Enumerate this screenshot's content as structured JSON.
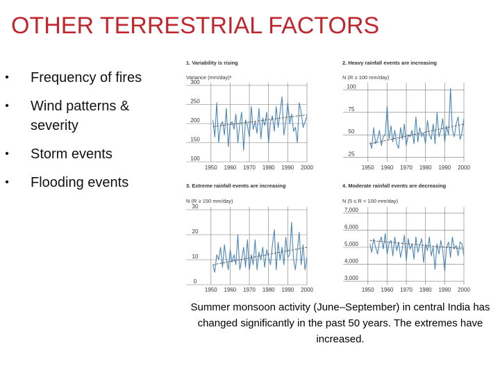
{
  "slide": {
    "title": "OTHER TERRESTRIAL FACTORS",
    "bullets": [
      "Frequency of fires",
      "Wind patterns & severity",
      "Storm events",
      "Flooding events"
    ],
    "bullet_glyph": "•",
    "caption": "Summer monsoon activity (June–September) in central India has changed significantly in the past 50 years. The extremes have increased."
  },
  "colors": {
    "title": "#c0262d",
    "series": "#4a86b8",
    "trend": "#555555",
    "grid": "#777777"
  },
  "chart_data": [
    {
      "type": "line",
      "title": "1. Variability is rising",
      "ylabel": "Variance (mm/day)²",
      "xlim": [
        1945,
        2000
      ],
      "ylim": [
        100,
        300
      ],
      "xticks": [
        1950,
        1960,
        1970,
        1980,
        1990,
        2000
      ],
      "yticks": [
        100,
        150,
        200,
        250,
        300
      ],
      "yticklabels": [
        "100",
        "150",
        "200",
        "250",
        "300"
      ],
      "grid": true,
      "x_start": 1951,
      "values": [
        210,
        165,
        255,
        150,
        195,
        205,
        170,
        240,
        140,
        200,
        205,
        185,
        225,
        150,
        200,
        230,
        130,
        210,
        195,
        165,
        245,
        185,
        205,
        175,
        240,
        160,
        215,
        195,
        230,
        150,
        205,
        220,
        180,
        245,
        190,
        230,
        270,
        170,
        205,
        255,
        200,
        225,
        180,
        190,
        150,
        255,
        230,
        190,
        205,
        220
      ],
      "trend": [
        [
          1951,
          192
        ],
        [
          2000,
          223
        ]
      ]
    },
    {
      "type": "line",
      "title": "2. Heavy rainfall events are increasing",
      "ylabel": "N (R ≥ 100 mm/day)",
      "xlim": [
        1945,
        2000
      ],
      "ylim": [
        20,
        105
      ],
      "xticks": [
        1950,
        1960,
        1970,
        1980,
        1990,
        2000
      ],
      "yticks": [
        25,
        50,
        75,
        100
      ],
      "yticklabels": [
        "25",
        "50",
        "75",
        "100"
      ],
      "grid": true,
      "x_start": 1951,
      "values": [
        42,
        35,
        58,
        40,
        45,
        55,
        38,
        48,
        50,
        82,
        45,
        60,
        42,
        55,
        40,
        35,
        58,
        45,
        62,
        38,
        50,
        48,
        55,
        40,
        70,
        42,
        58,
        48,
        52,
        40,
        66,
        50,
        45,
        62,
        40,
        75,
        48,
        55,
        68,
        42,
        60,
        50,
        102,
        55,
        48,
        62,
        70,
        45,
        52,
        68
      ],
      "trend": [
        [
          1951,
          40
        ],
        [
          2000,
          62
        ]
      ]
    },
    {
      "type": "line",
      "title": "3. Extreme rainfall events are increasing",
      "ylabel": "N (R ≥ 150 mm/day)",
      "xlim": [
        1945,
        2000
      ],
      "ylim": [
        0,
        30
      ],
      "xticks": [
        1950,
        1960,
        1970,
        1980,
        1990,
        2000
      ],
      "yticks": [
        0,
        10,
        20,
        30
      ],
      "yticklabels": [
        "0",
        "10",
        "20",
        "30"
      ],
      "grid": true,
      "x_start": 1951,
      "values": [
        8,
        5,
        12,
        10,
        15,
        7,
        16,
        10,
        6,
        14,
        9,
        12,
        8,
        20,
        6,
        10,
        15,
        7,
        18,
        6,
        12,
        8,
        18,
        6,
        13,
        10,
        15,
        7,
        14,
        11,
        8,
        16,
        22,
        6,
        17,
        10,
        15,
        8,
        19,
        11,
        12,
        25,
        10,
        6,
        14,
        21,
        8,
        16,
        6,
        11
      ],
      "trend": [
        [
          1951,
          8
        ],
        [
          2000,
          15
        ]
      ]
    },
    {
      "type": "line",
      "title": "4. Moderate rainfall events are decreasing",
      "ylabel": "N (5 ≤ R < 100 mm/day)",
      "xlim": [
        1945,
        2000
      ],
      "ylim": [
        2800,
        7200
      ],
      "xticks": [
        1950,
        1960,
        1970,
        1980,
        1990,
        2000
      ],
      "yticks": [
        3000,
        4000,
        5000,
        6000,
        7000
      ],
      "yticklabels": [
        "3,000",
        "4,000",
        "5,000",
        "6,000",
        "7,000"
      ],
      "grid": true,
      "x_start": 1951,
      "values": [
        5200,
        4700,
        5500,
        5000,
        4600,
        5300,
        5600,
        4900,
        5800,
        4600,
        5200,
        5400,
        4500,
        5600,
        4800,
        5300,
        4400,
        5000,
        5700,
        4200,
        5500,
        4900,
        5200,
        4300,
        5600,
        4700,
        5100,
        5500,
        4100,
        5200,
        4800,
        5600,
        4500,
        5000,
        3700,
        5200,
        4600,
        5400,
        4800,
        3600,
        5000,
        5300,
        4400,
        5600,
        4900,
        5100,
        4500,
        5300,
        5200,
        4500
      ],
      "trend": [
        [
          1951,
          5400
        ],
        [
          2000,
          4900
        ]
      ]
    }
  ]
}
